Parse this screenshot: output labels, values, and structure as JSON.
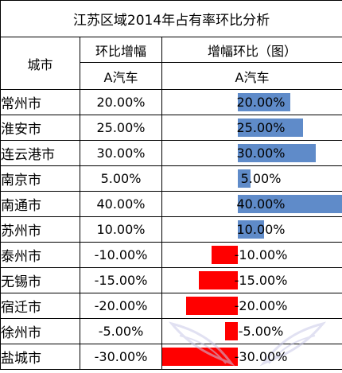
{
  "title": "江苏区域2014年占有率环比分析",
  "headers": {
    "city": "城市",
    "ratio": "环比增幅",
    "chart": "增幅环比（图）",
    "sub_ratio": "A汽车",
    "sub_chart": "A汽车"
  },
  "colors": {
    "positive": "#5f8bc9",
    "negative": "#ff0000"
  },
  "bar_scale_max": 40,
  "rows": [
    {
      "city": "常州市",
      "value": 20,
      "label": "20.00%"
    },
    {
      "city": "淮安市",
      "value": 25,
      "label": "25.00%"
    },
    {
      "city": "连云港市",
      "value": 30,
      "label": "30.00%"
    },
    {
      "city": "南京市",
      "value": 5,
      "label": "5.00%"
    },
    {
      "city": "南通市",
      "value": 40,
      "label": "40.00%"
    },
    {
      "city": "苏州市",
      "value": 10,
      "label": "10.00%"
    },
    {
      "city": "泰州市",
      "value": -10,
      "label": "-10.00%"
    },
    {
      "city": "无锡市",
      "value": -15,
      "label": "-15.00%"
    },
    {
      "city": "宿迁市",
      "value": -20,
      "label": "-20.00%"
    },
    {
      "city": "徐州市",
      "value": -5,
      "label": "-5.00%"
    },
    {
      "city": "盐城市",
      "value": -30,
      "label": "-30.00%"
    }
  ],
  "watermark_icon": "wings-logo-icon"
}
